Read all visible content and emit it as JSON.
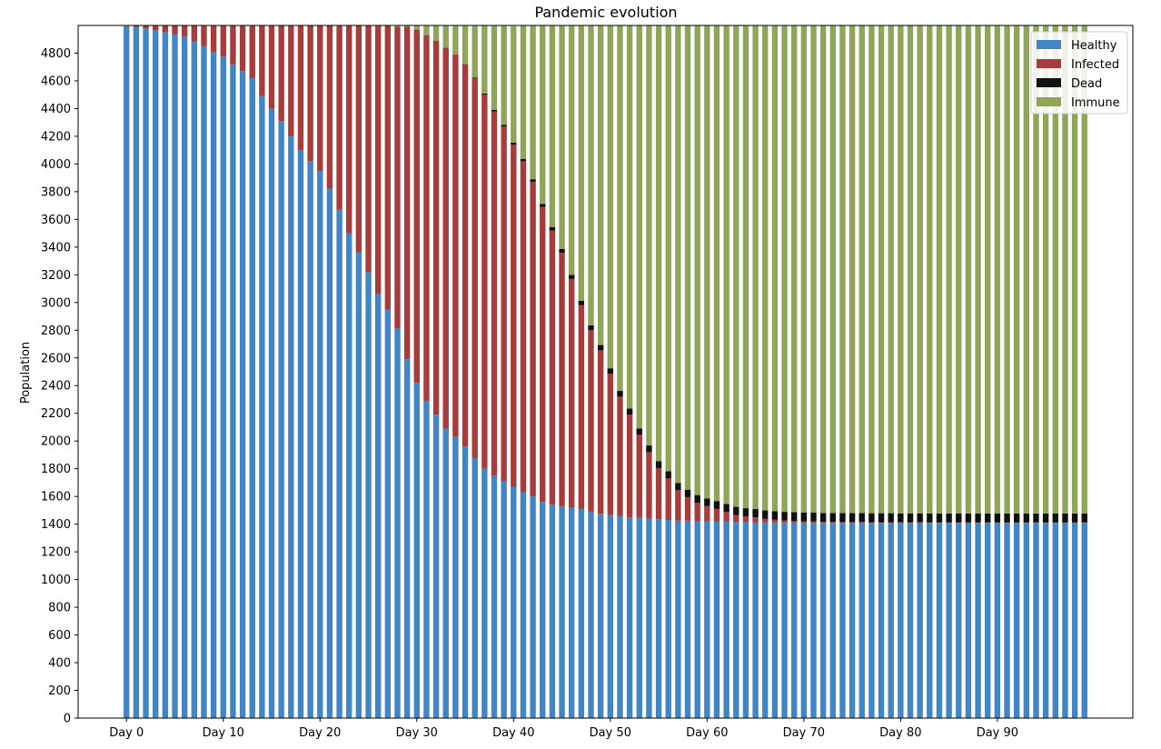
{
  "chart_data": {
    "type": "bar",
    "stacked": true,
    "title": "Pandemic evolution",
    "xlabel": "",
    "ylabel": "Population",
    "ylim": [
      0,
      5000
    ],
    "xlim": [
      -5,
      104
    ],
    "yticks": [
      0,
      200,
      400,
      600,
      800,
      1000,
      1200,
      1400,
      1600,
      1800,
      2000,
      2200,
      2400,
      2600,
      2800,
      3000,
      3200,
      3400,
      3600,
      3800,
      4000,
      4200,
      4400,
      4600,
      4800
    ],
    "xticks": [
      {
        "x": 0,
        "label": "Day 0"
      },
      {
        "x": 10,
        "label": "Day 10"
      },
      {
        "x": 20,
        "label": "Day 20"
      },
      {
        "x": 30,
        "label": "Day 30"
      },
      {
        "x": 40,
        "label": "Day 40"
      },
      {
        "x": 50,
        "label": "Day 50"
      },
      {
        "x": 60,
        "label": "Day 60"
      },
      {
        "x": 70,
        "label": "Day 70"
      },
      {
        "x": 80,
        "label": "Day 80"
      },
      {
        "x": 90,
        "label": "Day 90"
      }
    ],
    "grid": false,
    "legend_position": "top-right",
    "days": 100,
    "total": 5000,
    "series": [
      {
        "name": "Healthy",
        "color": "#4285c5",
        "values": [
          4995,
          4990,
          4980,
          4965,
          4950,
          4935,
          4920,
          4885,
          4850,
          4810,
          4775,
          4720,
          4670,
          4620,
          4490,
          4400,
          4310,
          4200,
          4100,
          4020,
          3950,
          3820,
          3670,
          3500,
          3360,
          3220,
          3060,
          2950,
          2810,
          2590,
          2420,
          2290,
          2190,
          2090,
          2030,
          1960,
          1880,
          1800,
          1750,
          1710,
          1670,
          1630,
          1600,
          1560,
          1540,
          1530,
          1520,
          1510,
          1490,
          1475,
          1465,
          1460,
          1450,
          1445,
          1440,
          1435,
          1430,
          1425,
          1425,
          1420,
          1420,
          1420,
          1418,
          1416,
          1415,
          1414,
          1413,
          1412,
          1412,
          1411,
          1411,
          1411,
          1410,
          1410,
          1410,
          1410,
          1410,
          1410,
          1410,
          1410,
          1410,
          1410,
          1410,
          1410,
          1410,
          1410,
          1410,
          1410,
          1410,
          1410,
          1410,
          1410,
          1410,
          1410,
          1410,
          1410,
          1410,
          1410,
          1410,
          1410
        ]
      },
      {
        "name": "Infected",
        "color": "#a63c3c",
        "values": [
          5,
          10,
          20,
          35,
          50,
          65,
          80,
          115,
          150,
          190,
          225,
          280,
          330,
          380,
          510,
          600,
          690,
          800,
          900,
          980,
          1050,
          1180,
          1330,
          1500,
          1640,
          1780,
          1940,
          2050,
          2180,
          2400,
          2550,
          2640,
          2700,
          2750,
          2760,
          2760,
          2740,
          2700,
          2630,
          2560,
          2470,
          2390,
          2270,
          2130,
          1980,
          1830,
          1650,
          1470,
          1310,
          1180,
          1020,
          860,
          740,
          600,
          480,
          370,
          300,
          220,
          170,
          135,
          110,
          90,
          70,
          50,
          40,
          35,
          25,
          20,
          15,
          12,
          10,
          8,
          7,
          6,
          5,
          5,
          5,
          4,
          4,
          4,
          3,
          3,
          3,
          2,
          2,
          2,
          2,
          2,
          2,
          2,
          2,
          2,
          2,
          2,
          2,
          2,
          2,
          2,
          2,
          2
        ]
      },
      {
        "name": "Dead",
        "color": "#111111",
        "values": [
          0,
          0,
          0,
          0,
          0,
          0,
          0,
          0,
          0,
          0,
          0,
          0,
          0,
          0,
          0,
          0,
          0,
          0,
          0,
          0,
          0,
          0,
          0,
          0,
          0,
          0,
          0,
          0,
          0,
          0,
          0,
          0,
          0,
          0,
          0,
          2,
          5,
          8,
          10,
          13,
          15,
          17,
          20,
          22,
          25,
          27,
          30,
          32,
          35,
          38,
          40,
          42,
          44,
          46,
          48,
          50,
          52,
          53,
          54,
          55,
          56,
          57,
          58,
          59,
          60,
          60,
          61,
          62,
          62,
          63,
          63,
          64,
          64,
          64,
          65,
          65,
          65,
          65,
          65,
          65,
          65,
          65,
          65,
          65,
          65,
          65,
          65,
          65,
          65,
          65,
          65,
          65,
          65,
          65,
          65,
          65,
          65,
          65,
          65,
          65
        ]
      },
      {
        "name": "Immune",
        "color": "#8fa65a",
        "values": [
          0,
          0,
          0,
          0,
          0,
          0,
          0,
          0,
          0,
          0,
          0,
          0,
          0,
          0,
          0,
          0,
          0,
          0,
          0,
          0,
          0,
          0,
          0,
          0,
          0,
          0,
          0,
          0,
          10,
          10,
          30,
          70,
          110,
          160,
          210,
          280,
          375,
          492,
          610,
          717,
          840,
          963,
          1110,
          1288,
          1455,
          1613,
          1800,
          1988,
          2165,
          2307,
          2475,
          2638,
          2766,
          2909,
          3032,
          3145,
          3218,
          3302,
          3351,
          3390,
          3414,
          3433,
          3454,
          3475,
          3485,
          3491,
          3501,
          3506,
          3511,
          3514,
          3516,
          3517,
          3519,
          3520,
          3520,
          3520,
          3520,
          3521,
          3521,
          3521,
          3522,
          3522,
          3522,
          3523,
          3523,
          3523,
          3523,
          3523,
          3523,
          3523,
          3523,
          3523,
          3523,
          3523,
          3523,
          3523,
          3523,
          3523,
          3523,
          3523
        ]
      }
    ]
  }
}
